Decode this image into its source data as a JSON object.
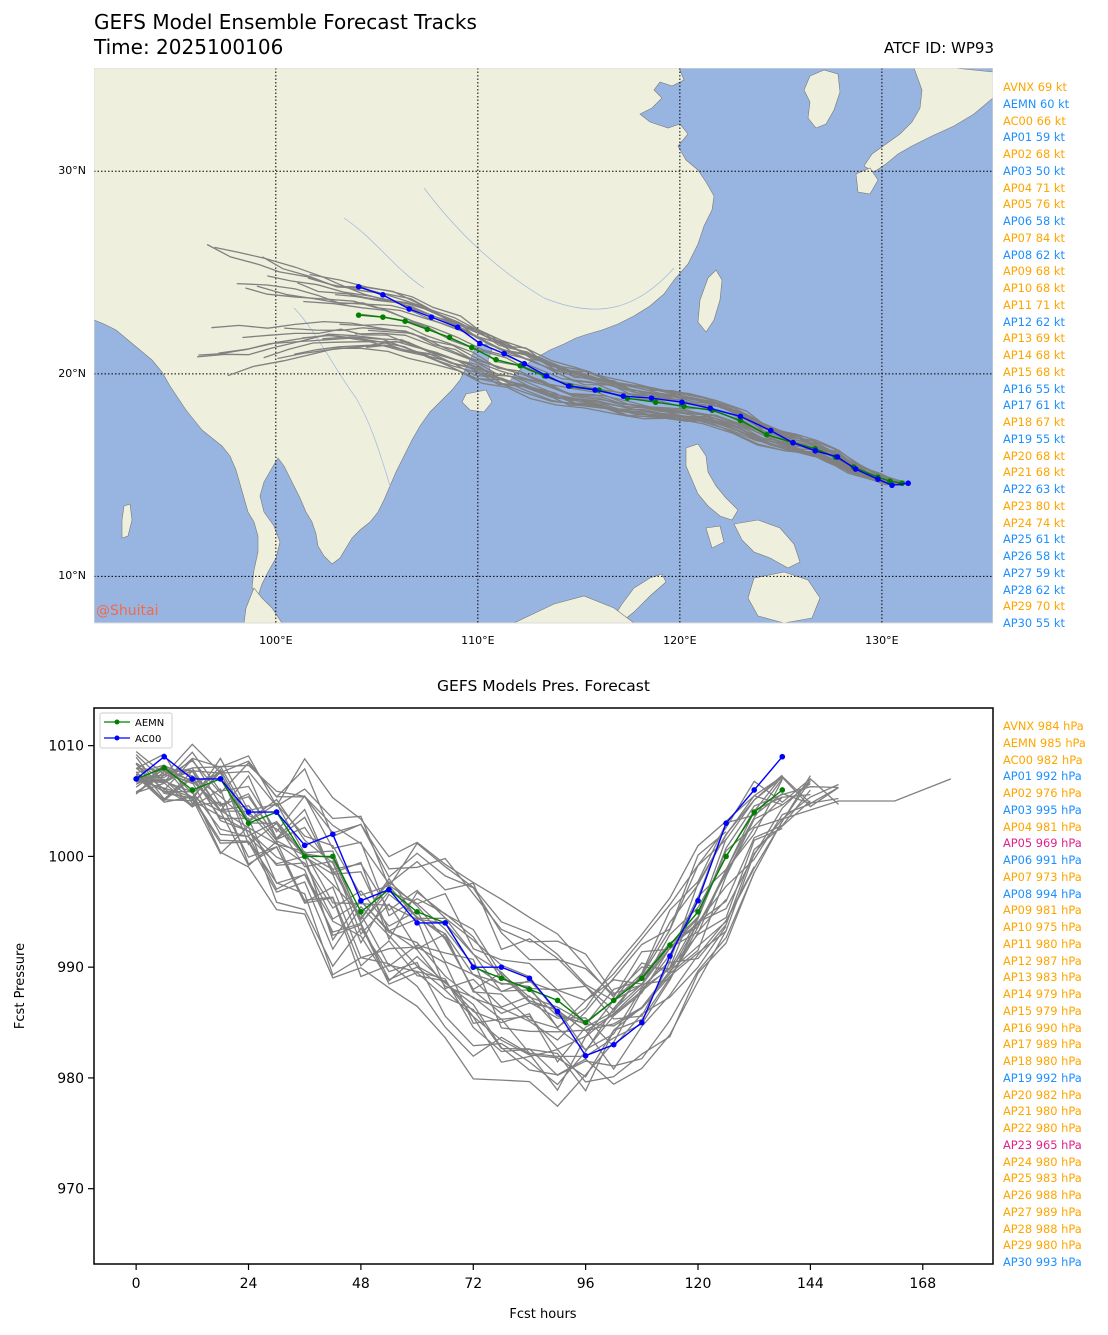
{
  "header": {
    "title": "GEFS Model Ensemble Forecast Tracks",
    "time_label": "Time: 2025100106",
    "atcf_label": "ATCF ID: WP93"
  },
  "watermark": "@Shuitai",
  "colors": {
    "ocean": "#98b5e1",
    "land": "#efefdd",
    "coast": "#555555",
    "river": "#9fb8de",
    "track_gray": "#808080",
    "aemn": "#008000",
    "ac00": "#0000ff",
    "legend_orange": "#ffa500",
    "legend_blue": "#1e90ff",
    "legend_magenta": "#e0218a"
  },
  "track_legend": [
    {
      "label": "AVNX 69 kt",
      "color": "orange"
    },
    {
      "label": "AEMN 60 kt",
      "color": "blue"
    },
    {
      "label": "AC00 66 kt",
      "color": "orange"
    },
    {
      "label": "AP01 59 kt",
      "color": "blue"
    },
    {
      "label": "AP02 68 kt",
      "color": "orange"
    },
    {
      "label": "AP03 50 kt",
      "color": "blue"
    },
    {
      "label": "AP04 71 kt",
      "color": "orange"
    },
    {
      "label": "AP05 76 kt",
      "color": "orange"
    },
    {
      "label": "AP06 58 kt",
      "color": "blue"
    },
    {
      "label": "AP07 84 kt",
      "color": "orange"
    },
    {
      "label": "AP08 62 kt",
      "color": "blue"
    },
    {
      "label": "AP09 68 kt",
      "color": "orange"
    },
    {
      "label": "AP10 68 kt",
      "color": "orange"
    },
    {
      "label": "AP11 71 kt",
      "color": "orange"
    },
    {
      "label": "AP12 62 kt",
      "color": "blue"
    },
    {
      "label": "AP13 69 kt",
      "color": "orange"
    },
    {
      "label": "AP14 68 kt",
      "color": "orange"
    },
    {
      "label": "AP15 68 kt",
      "color": "orange"
    },
    {
      "label": "AP16 55 kt",
      "color": "blue"
    },
    {
      "label": "AP17 61 kt",
      "color": "blue"
    },
    {
      "label": "AP18 67 kt",
      "color": "orange"
    },
    {
      "label": "AP19 55 kt",
      "color": "blue"
    },
    {
      "label": "AP20 68 kt",
      "color": "orange"
    },
    {
      "label": "AP21 68 kt",
      "color": "orange"
    },
    {
      "label": "AP22 63 kt",
      "color": "blue"
    },
    {
      "label": "AP23 80 kt",
      "color": "orange"
    },
    {
      "label": "AP24 74 kt",
      "color": "orange"
    },
    {
      "label": "AP25 61 kt",
      "color": "blue"
    },
    {
      "label": "AP26 58 kt",
      "color": "blue"
    },
    {
      "label": "AP27 59 kt",
      "color": "blue"
    },
    {
      "label": "AP28 62 kt",
      "color": "blue"
    },
    {
      "label": "AP29 70 kt",
      "color": "orange"
    },
    {
      "label": "AP30 55 kt",
      "color": "blue"
    }
  ],
  "pres_legend": [
    {
      "label": "AVNX 984 hPa",
      "color": "orange"
    },
    {
      "label": "AEMN 985 hPa",
      "color": "orange"
    },
    {
      "label": "AC00 982 hPa",
      "color": "orange"
    },
    {
      "label": "AP01 992 hPa",
      "color": "blue"
    },
    {
      "label": "AP02 976 hPa",
      "color": "orange"
    },
    {
      "label": "AP03 995 hPa",
      "color": "blue"
    },
    {
      "label": "AP04 981 hPa",
      "color": "orange"
    },
    {
      "label": "AP05 969 hPa",
      "color": "magenta"
    },
    {
      "label": "AP06 991 hPa",
      "color": "blue"
    },
    {
      "label": "AP07 973 hPa",
      "color": "orange"
    },
    {
      "label": "AP08 994 hPa",
      "color": "blue"
    },
    {
      "label": "AP09 981 hPa",
      "color": "orange"
    },
    {
      "label": "AP10 975 hPa",
      "color": "orange"
    },
    {
      "label": "AP11 980 hPa",
      "color": "orange"
    },
    {
      "label": "AP12 987 hPa",
      "color": "orange"
    },
    {
      "label": "AP13 983 hPa",
      "color": "orange"
    },
    {
      "label": "AP14 979 hPa",
      "color": "orange"
    },
    {
      "label": "AP15 979 hPa",
      "color": "orange"
    },
    {
      "label": "AP16 990 hPa",
      "color": "orange"
    },
    {
      "label": "AP17 989 hPa",
      "color": "orange"
    },
    {
      "label": "AP18 980 hPa",
      "color": "orange"
    },
    {
      "label": "AP19 992 hPa",
      "color": "blue"
    },
    {
      "label": "AP20 982 hPa",
      "color": "orange"
    },
    {
      "label": "AP21 980 hPa",
      "color": "orange"
    },
    {
      "label": "AP22 980 hPa",
      "color": "orange"
    },
    {
      "label": "AP23 965 hPa",
      "color": "magenta"
    },
    {
      "label": "AP24 980 hPa",
      "color": "orange"
    },
    {
      "label": "AP25 983 hPa",
      "color": "orange"
    },
    {
      "label": "AP26 988 hPa",
      "color": "orange"
    },
    {
      "label": "AP27 989 hPa",
      "color": "orange"
    },
    {
      "label": "AP28 988 hPa",
      "color": "orange"
    },
    {
      "label": "AP29 980 hPa",
      "color": "orange"
    },
    {
      "label": "AP30 993 hPa",
      "color": "blue"
    }
  ],
  "chart_data": [
    {
      "type": "line",
      "subtype": "map-tracks",
      "title": "",
      "x_axis": {
        "range": [
          91,
          135.5
        ],
        "ticks": [
          100,
          110,
          120,
          130
        ],
        "tick_labels": [
          "100°E",
          "110°E",
          "120°E",
          "130°E"
        ]
      },
      "y_axis": {
        "range": [
          7.7,
          35.1
        ],
        "ticks": [
          10,
          20,
          30
        ],
        "tick_labels": [
          "10°N",
          "20°N",
          "30°N"
        ]
      },
      "grid": "dotted",
      "highlight_tracks": [
        {
          "name": "AEMN",
          "color": "green",
          "lon": [
            131.0,
            130.4,
            129.8,
            128.6,
            127.7,
            126.7,
            125.6,
            124.3,
            123.0,
            121.6,
            120.2,
            118.8,
            117.4,
            116.0,
            114.6,
            113.3,
            112.1,
            110.9,
            109.7,
            108.6,
            107.5,
            106.4,
            105.3,
            104.1
          ],
          "lat": [
            14.6,
            14.7,
            14.9,
            15.4,
            15.9,
            16.3,
            16.6,
            17.0,
            17.7,
            18.2,
            18.4,
            18.6,
            18.8,
            19.2,
            19.4,
            19.9,
            20.4,
            20.7,
            21.3,
            21.8,
            22.2,
            22.6,
            22.8,
            22.9
          ]
        },
        {
          "name": "AC00",
          "color": "blue",
          "lon": [
            131.3,
            130.5,
            129.8,
            128.7,
            127.8,
            126.7,
            125.6,
            124.5,
            123.0,
            121.5,
            120.1,
            118.6,
            117.2,
            115.8,
            114.5,
            113.4,
            112.3,
            111.3,
            110.1,
            109.0,
            107.7,
            106.6,
            105.3,
            104.1
          ],
          "lat": [
            14.6,
            14.5,
            14.8,
            15.3,
            15.9,
            16.2,
            16.6,
            17.2,
            17.9,
            18.3,
            18.6,
            18.8,
            18.9,
            19.2,
            19.4,
            19.9,
            20.5,
            21.0,
            21.5,
            22.3,
            22.8,
            23.2,
            23.9,
            24.3
          ]
        }
      ],
      "ensemble_track_count": 31
    },
    {
      "type": "line",
      "title": "GEFS Models Pres. Forecast",
      "xlabel": "Fcst hours",
      "ylabel": "Fcst Pressure",
      "xlim": [
        -9,
        183
      ],
      "ylim": [
        963.2,
        1013.4
      ],
      "x_ticks": [
        0,
        24,
        48,
        72,
        96,
        120,
        144,
        168
      ],
      "y_ticks": [
        970,
        980,
        990,
        1000,
        1010
      ],
      "legend": {
        "position": "upper-left",
        "entries": [
          "AEMN",
          "AC00"
        ]
      },
      "series": [
        {
          "name": "AEMN",
          "color": "green",
          "x": [
            0,
            6,
            12,
            18,
            24,
            30,
            36,
            42,
            48,
            54,
            60,
            66,
            72,
            78,
            84,
            90,
            96,
            102,
            108,
            114,
            120,
            126,
            132,
            138
          ],
          "y": [
            1007,
            1008,
            1006,
            1007,
            1003,
            1004,
            1000,
            1000,
            995,
            997,
            995,
            994,
            990,
            989,
            988,
            987,
            985,
            987,
            989,
            992,
            995,
            1000,
            1004,
            1006
          ]
        },
        {
          "name": "AC00",
          "color": "blue",
          "x": [
            0,
            6,
            12,
            18,
            24,
            30,
            36,
            42,
            48,
            54,
            60,
            66,
            72,
            78,
            84,
            90,
            96,
            102,
            108,
            114,
            120,
            126,
            132,
            138
          ],
          "y": [
            1007,
            1009,
            1007,
            1007,
            1004,
            1004,
            1001,
            1002,
            996,
            997,
            994,
            994,
            990,
            990,
            989,
            986,
            982,
            983,
            985,
            991,
            996,
            1003,
            1006,
            1009
          ]
        }
      ],
      "ensemble_series_count": 31
    }
  ]
}
